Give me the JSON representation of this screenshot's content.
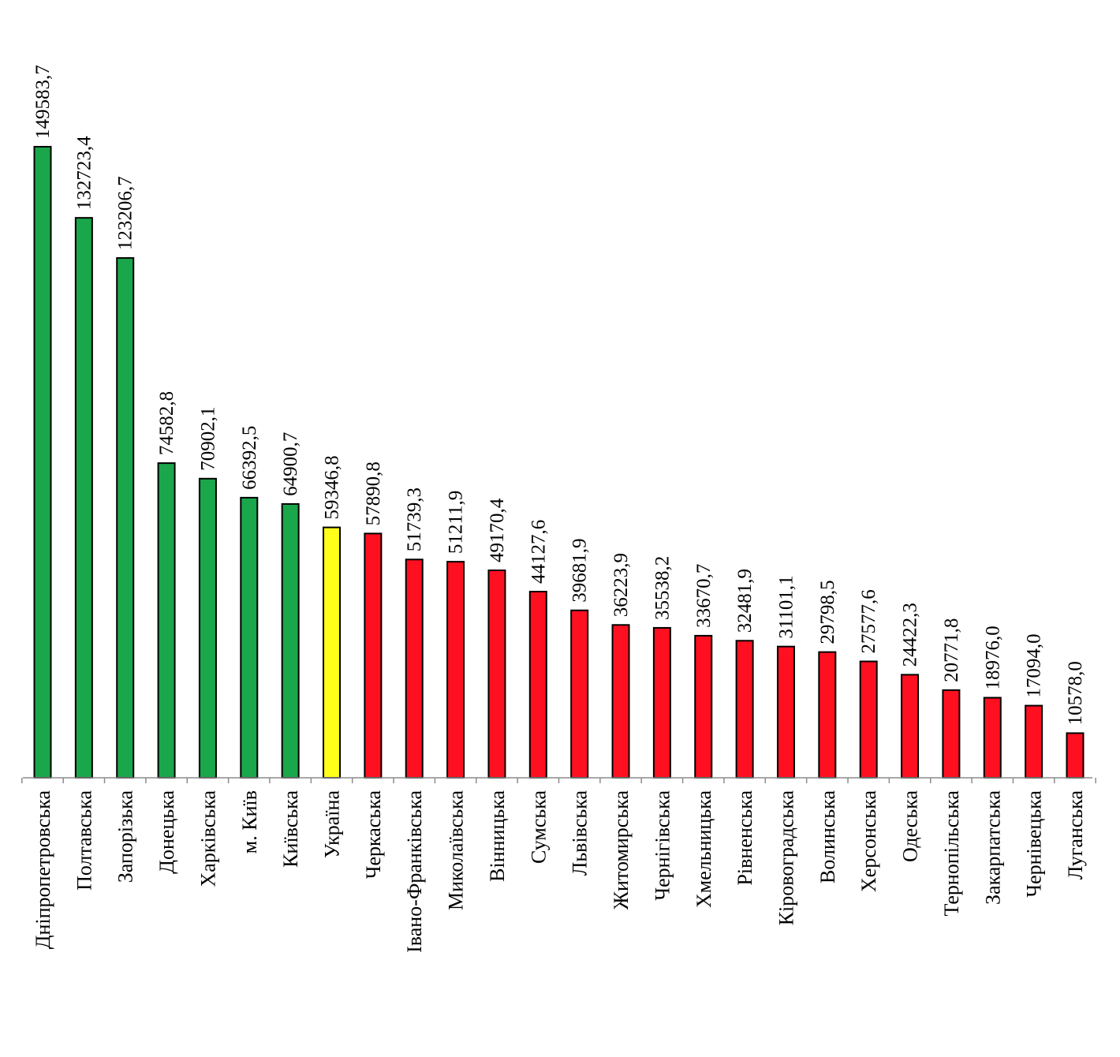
{
  "chart_data": {
    "type": "bar",
    "title": "",
    "xlabel": "",
    "ylabel": "",
    "ylim": [
      0,
      149583.7
    ],
    "grid": false,
    "legend": "none",
    "colors": {
      "above": "#1aa64a",
      "national": "#ffff1a",
      "below": "#ff1020"
    },
    "categories": [
      "Дніпропетровська",
      "Полтавська",
      "Запорізька",
      "Донецька",
      "Харківська",
      "м. Київ",
      "Київська",
      "Україна",
      "Черкаська",
      "Івано-Франківська",
      "Миколаївська",
      "Вінницька",
      "Сумська",
      "Львівська",
      "Житомирська",
      "Чернігівська",
      "Хмельницька",
      "Рівненська",
      "Кіровоградська",
      "Волинська",
      "Херсонська",
      "Одеська",
      "Тернопільська",
      "Закарпатська",
      "Чернівецька",
      "Луганська"
    ],
    "values": [
      149583.7,
      132723.4,
      123206.7,
      74582.8,
      70902.1,
      66392.5,
      64900.7,
      59346.8,
      57890.8,
      51739.3,
      51211.9,
      49170.4,
      44127.6,
      39681.9,
      36223.9,
      35538.2,
      33670.7,
      32481.9,
      31101.1,
      29798.5,
      27577.6,
      24422.3,
      20771.8,
      18976.0,
      17094.0,
      10578.0
    ],
    "value_labels": [
      "149583,7",
      "132723,4",
      "123206,7",
      "74582,8",
      "70902,1",
      "66392,5",
      "64900,7",
      "59346,8",
      "57890,8",
      "51739,3",
      "51211,9",
      "49170,4",
      "44127,6",
      "39681,9",
      "36223,9",
      "35538,2",
      "33670,7",
      "32481,9",
      "31101,1",
      "29798,5",
      "27577,6",
      "24422,3",
      "20771,8",
      "18976,0",
      "17094,0",
      "10578,0"
    ],
    "bar_color_groups": [
      "above",
      "above",
      "above",
      "above",
      "above",
      "above",
      "above",
      "national",
      "below",
      "below",
      "below",
      "below",
      "below",
      "below",
      "below",
      "below",
      "below",
      "below",
      "below",
      "below",
      "below",
      "below",
      "below",
      "below",
      "below",
      "below"
    ]
  }
}
